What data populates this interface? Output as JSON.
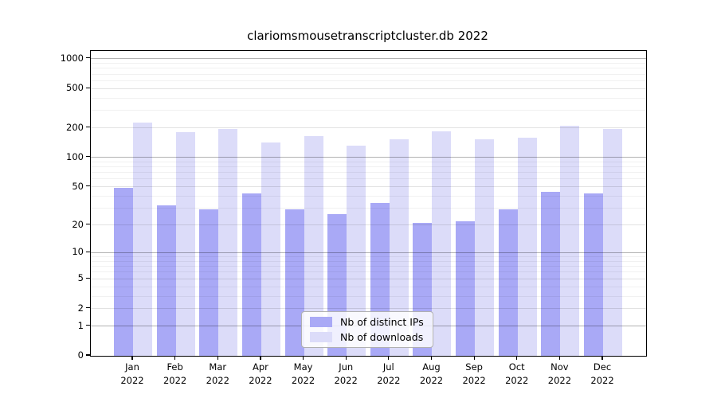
{
  "title": "clariomsmousetranscriptcluster.db 2022",
  "legend": {
    "distinct_ips_label": "Nb of distinct IPs",
    "downloads_label": "Nb of downloads"
  },
  "colors": {
    "distinct_ips": "#a9a9f6",
    "downloads": "#dcdcf9",
    "grid_decade": "rgba(0,0,0,0.30)",
    "grid_labeled": "rgba(0,0,0,0.115)",
    "grid_minor": "rgba(0,0,0,0.055)",
    "axis": "#000000"
  },
  "chart_data": {
    "type": "bar",
    "title": "clariomsmousetranscriptcluster.db 2022",
    "categories": [
      "Jan 2022",
      "Feb 2022",
      "Mar 2022",
      "Apr 2022",
      "May 2022",
      "Jun 2022",
      "Jul 2022",
      "Aug 2022",
      "Sep 2022",
      "Oct 2022",
      "Nov 2022",
      "Dec 2022"
    ],
    "series": [
      {
        "name": "Nb of distinct IPs",
        "values": [
          49,
          32,
          29,
          43,
          29,
          26,
          34,
          21,
          22,
          29,
          44,
          43
        ]
      },
      {
        "name": "Nb of downloads",
        "values": [
          225,
          181,
          196,
          141,
          166,
          133,
          153,
          186,
          153,
          159,
          210,
          196
        ]
      }
    ],
    "xlabel": "",
    "ylabel": "",
    "y_ticks": [
      1000,
      500,
      200,
      100,
      50,
      20,
      10,
      5,
      2,
      1,
      0
    ],
    "grid_decade_values": [
      1,
      10,
      100,
      1000
    ],
    "grid_labeled_values": [
      2,
      5,
      20,
      50,
      200,
      500
    ],
    "grid_minor_values": [
      3,
      4,
      6,
      7,
      8,
      9,
      30,
      40,
      60,
      70,
      80,
      90,
      300,
      400,
      600,
      700,
      800,
      900
    ],
    "scale": "log(value+1)",
    "ylim": [
      0,
      1200
    ],
    "grid": true,
    "legend_position": "lower center inside plot"
  }
}
